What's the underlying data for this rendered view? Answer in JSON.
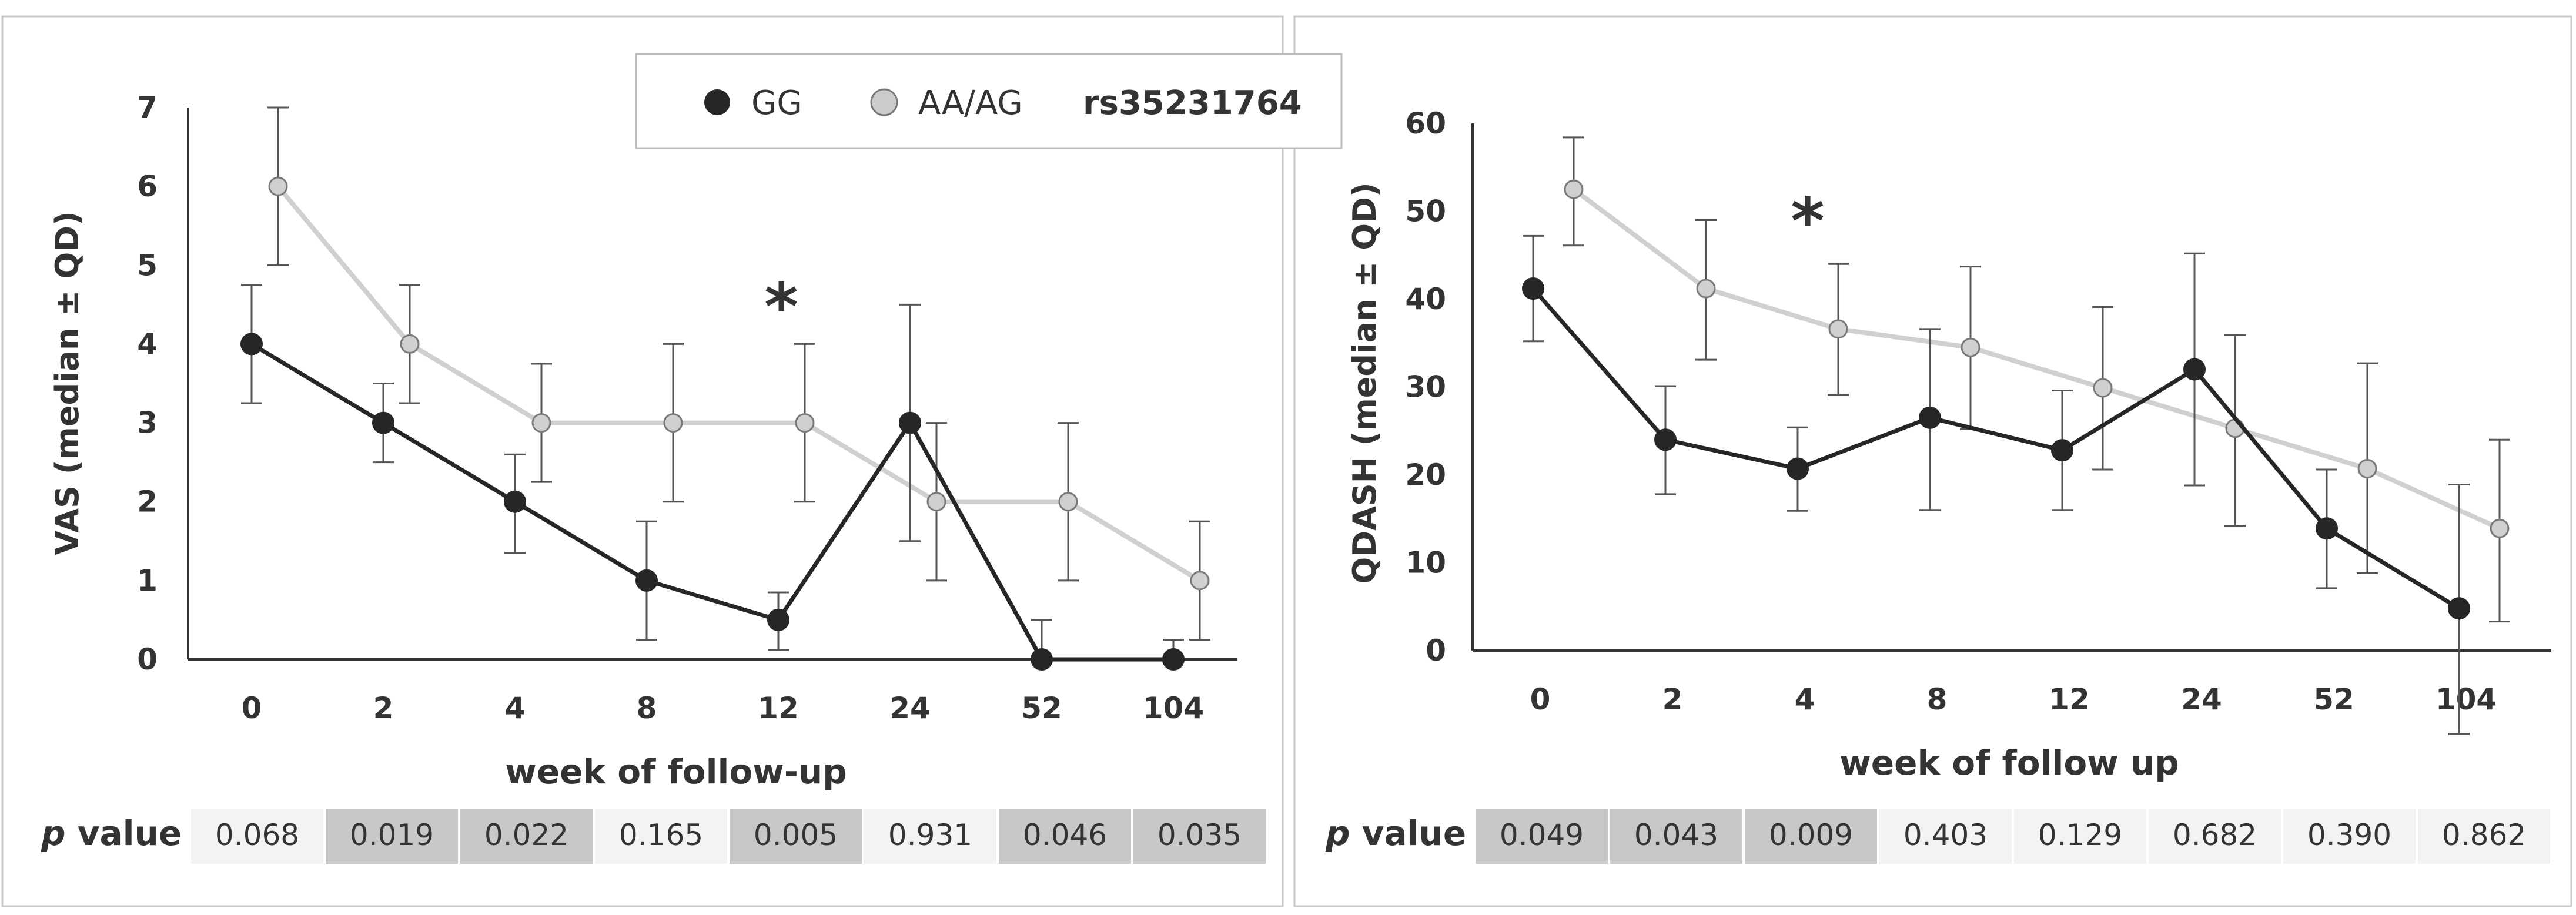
{
  "legend": {
    "items": [
      {
        "label": "GG",
        "color": "#262626"
      },
      {
        "label": "AA/AG",
        "color": "#cccccc"
      }
    ],
    "title": "rs35231764"
  },
  "pvalue_label": {
    "italic": "p",
    "rest": " value"
  },
  "chart_data": [
    {
      "type": "line",
      "ylabel": "VAS (median ± QD)",
      "xlabel": "week of follow-up",
      "categories": [
        "0",
        "2",
        "4",
        "8",
        "12",
        "24",
        "52",
        "104"
      ],
      "ylim": [
        0,
        7
      ],
      "yticks": [
        "0",
        "1",
        "2",
        "3",
        "4",
        "5",
        "6",
        "7"
      ],
      "series": [
        {
          "name": "GG",
          "color": "#262626",
          "values": [
            4,
            3,
            2,
            1,
            0.5,
            3,
            0,
            0
          ],
          "err_low": [
            3.25,
            2.5,
            1.35,
            0.25,
            0.12,
            1.5,
            0,
            0
          ],
          "err_high": [
            4.75,
            3.5,
            2.6,
            1.75,
            0.85,
            4.5,
            0.5,
            0.25
          ]
        },
        {
          "name": "AA/AG",
          "color": "#d0d0d0",
          "values": [
            6,
            4,
            3,
            3,
            3,
            2,
            2,
            1
          ],
          "err_low": [
            5,
            3.25,
            2.25,
            2,
            2,
            1,
            1,
            0.25
          ],
          "err_high": [
            7,
            4.75,
            3.75,
            4,
            4,
            3,
            3,
            1.75
          ]
        }
      ],
      "significance": [
        {
          "category": "12",
          "label": "*",
          "y": 4.6
        }
      ],
      "p_values": [
        "0.068",
        "0.019",
        "0.022",
        "0.165",
        "0.005",
        "0.931",
        "0.046",
        "0.035"
      ],
      "p_highlight": [
        false,
        true,
        true,
        false,
        true,
        false,
        true,
        true
      ]
    },
    {
      "type": "line",
      "ylabel": "QDASH (median ± QD)",
      "xlabel": "week of follow up",
      "categories": [
        "0",
        "2",
        "4",
        "8",
        "12",
        "24",
        "52",
        "104"
      ],
      "ylim": [
        0,
        60
      ],
      "yticks": [
        "0",
        "10",
        "20",
        "30",
        "40",
        "50",
        "60"
      ],
      "series": [
        {
          "name": "GG",
          "color": "#262626",
          "values": [
            41.2,
            24.0,
            20.7,
            26.5,
            22.8,
            32.0,
            13.9,
            4.8
          ],
          "err_low": [
            35.2,
            17.8,
            15.9,
            16.0,
            16.0,
            18.8,
            7.1,
            -9.5
          ],
          "err_high": [
            47.2,
            30.1,
            25.4,
            36.6,
            29.6,
            45.2,
            20.6,
            18.9
          ]
        },
        {
          "name": "AA/AG",
          "color": "#d0d0d0",
          "values": [
            52.5,
            41.2,
            36.6,
            34.5,
            29.9,
            25.3,
            20.7,
            13.9
          ],
          "err_low": [
            46.1,
            33.1,
            29.1,
            25.2,
            20.6,
            14.2,
            8.8,
            3.3
          ],
          "err_high": [
            58.4,
            49.0,
            44.0,
            43.7,
            39.1,
            35.9,
            32.7,
            24.0
          ]
        }
      ],
      "significance": [
        {
          "category": "4",
          "label": "*",
          "y": 50.0
        }
      ],
      "p_values": [
        "0.049",
        "0.043",
        "0.009",
        "0.403",
        "0.129",
        "0.682",
        "0.390",
        "0.862"
      ],
      "p_highlight": [
        true,
        true,
        true,
        false,
        false,
        false,
        false,
        false
      ]
    }
  ]
}
